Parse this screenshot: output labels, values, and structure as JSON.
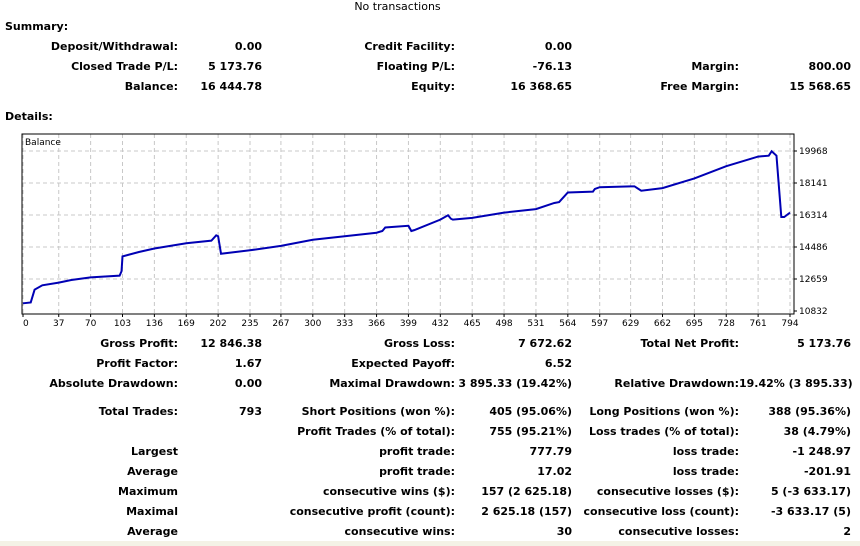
{
  "header": {
    "top_text": "No transactions"
  },
  "summary": {
    "title": "Summary:",
    "rows": [
      [
        "Deposit/Withdrawal:",
        "0.00",
        "Credit Facility:",
        "0.00",
        "",
        ""
      ],
      [
        "Closed Trade P/L:",
        "5 173.76",
        "Floating P/L:",
        "-76.13",
        "Margin:",
        "800.00"
      ],
      [
        "Balance:",
        "16 444.78",
        "Equity:",
        "16 368.65",
        "Free Margin:",
        "15 568.65"
      ]
    ]
  },
  "details": {
    "title": "Details:",
    "rows": [
      [
        "Gross Profit:",
        "12 846.38",
        "Gross Loss:",
        "7 672.62",
        "Total Net Profit:",
        "5 173.76"
      ],
      [
        "Profit Factor:",
        "1.67",
        "Expected Payoff:",
        "6.52",
        "",
        ""
      ],
      [
        "Absolute Drawdown:",
        "0.00",
        "Maximal Drawdown:",
        "3 895.33 (19.42%)",
        "Relative Drawdown:",
        "19.42% (3 895.33)"
      ],
      [
        "Total Trades:",
        "793",
        "Short Positions (won %):",
        "405 (95.06%)",
        "Long Positions (won %):",
        "388 (95.36%)"
      ],
      [
        "",
        "",
        "Profit Trades (% of total):",
        "755 (95.21%)",
        "Loss trades (% of total):",
        "38 (4.79%)"
      ],
      [
        "Largest",
        "",
        "profit trade:",
        "777.79",
        "loss trade:",
        "-1 248.97"
      ],
      [
        "Average",
        "",
        "profit trade:",
        "17.02",
        "loss trade:",
        "-201.91"
      ],
      [
        "Maximum",
        "",
        "consecutive wins ($):",
        "157 (2 625.18)",
        "consecutive losses ($):",
        "5 (-3 633.17)"
      ],
      [
        "Maximal",
        "",
        "consecutive profit (count):",
        "2 625.18 (157)",
        "consecutive loss (count):",
        "-3 633.17 (5)"
      ],
      [
        "Average",
        "",
        "consecutive wins:",
        "30",
        "consecutive losses:",
        "2"
      ]
    ]
  },
  "chart_data": {
    "type": "line",
    "title": "Balance",
    "line_color": "#0000b4",
    "grid": true,
    "xlim": [
      0,
      800
    ],
    "ylim": [
      10832,
      20882
    ],
    "x_ticks": [
      "0",
      "37",
      "70",
      "103",
      "136",
      "169",
      "202",
      "235",
      "267",
      "300",
      "333",
      "366",
      "399",
      "432",
      "465",
      "498",
      "531",
      "564",
      "597",
      "629",
      "662",
      "695",
      "728",
      "761",
      "794"
    ],
    "y_ticks": [
      "19968",
      "18141",
      "16314",
      "14486",
      "12659",
      "10832"
    ],
    "x": [
      0,
      8,
      12,
      20,
      37,
      50,
      70,
      100,
      102,
      103,
      120,
      136,
      169,
      195,
      200,
      202,
      205,
      235,
      267,
      300,
      333,
      366,
      372,
      375,
      399,
      402,
      405,
      432,
      440,
      443,
      445,
      465,
      498,
      531,
      550,
      555,
      564,
      590,
      592,
      597,
      629,
      633,
      640,
      662,
      695,
      728,
      761,
      772,
      775,
      780,
      785,
      788,
      794
    ],
    "y": [
      11271,
      11320,
      12050,
      12300,
      12450,
      12600,
      12750,
      12850,
      13100,
      13950,
      14200,
      14400,
      14700,
      14850,
      15150,
      15100,
      14100,
      14300,
      14550,
      14900,
      15100,
      15300,
      15400,
      15600,
      15700,
      15400,
      15450,
      16050,
      16300,
      16100,
      16050,
      16150,
      16450,
      16650,
      17000,
      17050,
      17600,
      17650,
      17800,
      17900,
      17950,
      17950,
      17700,
      17850,
      18400,
      19100,
      19650,
      19700,
      19950,
      19700,
      16200,
      16200,
      16450
    ]
  }
}
